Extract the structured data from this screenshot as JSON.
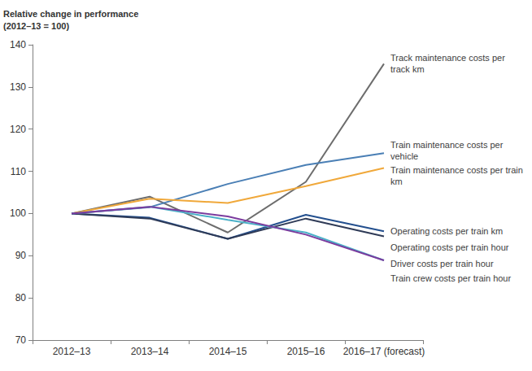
{
  "chart_data": {
    "type": "line",
    "y_label": "Relative change in performance\n(2012–13 = 100)",
    "categories": [
      "2012–13",
      "2013–14",
      "2014–15",
      "2015–16",
      "2016–17 (forecast)"
    ],
    "ylim": [
      70,
      140
    ],
    "yticks": [
      70,
      80,
      90,
      100,
      110,
      120,
      130,
      140
    ],
    "grid": false,
    "marker": "none",
    "line_style": "solid",
    "series": [
      {
        "name": "Track maintenance costs per track km",
        "color": "#6d6d6d",
        "values": [
          100,
          104,
          95.5,
          107.5,
          135.5
        ]
      },
      {
        "name": "Train maintenance costs per vehicle",
        "color": "#4a7fb5",
        "values": [
          100,
          101.5,
          107,
          111.5,
          114.3
        ]
      },
      {
        "name": "Train maintenance costs per train km",
        "color": "#f0a83a",
        "values": [
          100,
          103.5,
          102.5,
          106.5,
          110.8
        ]
      },
      {
        "name": "Operating costs per train km",
        "color": "#234f8e",
        "values": [
          100,
          99,
          94,
          99.7,
          95.8
        ]
      },
      {
        "name": "Operating costs per train hour",
        "color": "#2f3b57",
        "values": [
          100,
          98.8,
          94,
          98.8,
          94.6
        ]
      },
      {
        "name": "Driver costs per train hour",
        "color": "#4bb0c8",
        "values": [
          100,
          101.6,
          98.5,
          95.5,
          88.9
        ]
      },
      {
        "name": "Train crew costs per train hour",
        "color": "#7b3b9e",
        "values": [
          100,
          101.6,
          99.3,
          95,
          88.9
        ]
      }
    ]
  }
}
